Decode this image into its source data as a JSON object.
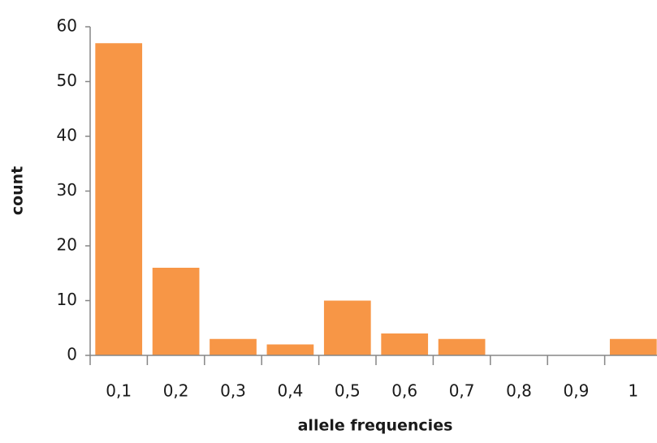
{
  "chart_data": {
    "type": "bar",
    "x_label": "allele frequencies",
    "y_label": "count",
    "categories": [
      "0,1",
      "0,2",
      "0,3",
      "0,4",
      "0,5",
      "0,6",
      "0,7",
      "0,8",
      "0,9",
      "1"
    ],
    "values": [
      57,
      16,
      3,
      2,
      10,
      4,
      3,
      0,
      0,
      3
    ],
    "color": "#f79646",
    "ylim": [
      0,
      60
    ],
    "yticks": [
      0,
      10,
      20,
      30,
      40,
      50,
      60
    ],
    "grid": false
  }
}
